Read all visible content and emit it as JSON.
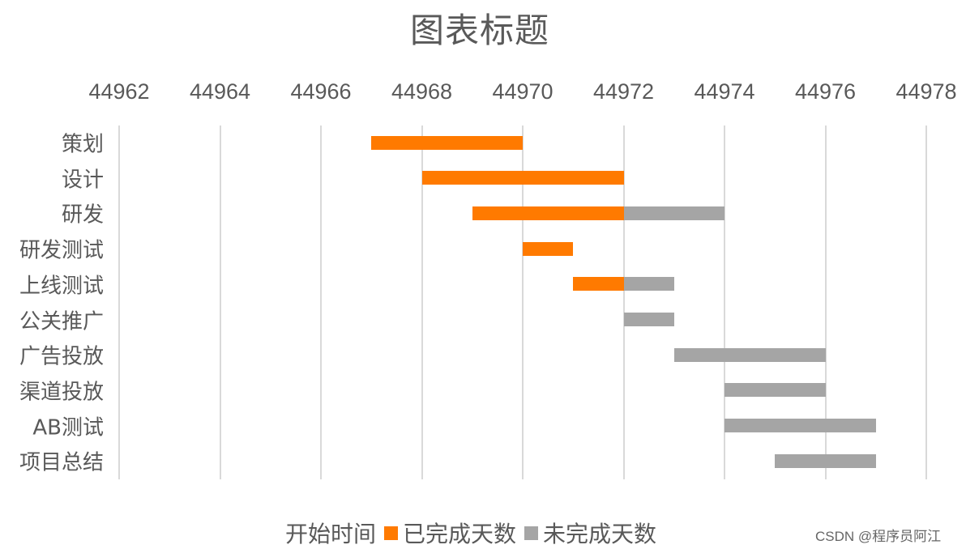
{
  "chart_data": {
    "type": "bar",
    "orientation": "horizontal-stacked-gantt",
    "title": "图表标题",
    "xlabel": "",
    "ylabel": "",
    "xlim": [
      44962,
      44978
    ],
    "x_ticks": [
      "44962",
      "44964",
      "44966",
      "44968",
      "44970",
      "44972",
      "44974",
      "44976",
      "44978"
    ],
    "x_axis_position": "top",
    "grid": true,
    "categories": [
      "策划",
      "设计",
      "研发",
      "研发测试",
      "上线测试",
      "公关推广",
      "广告投放",
      "渠道投放",
      "AB测试",
      "项目总结"
    ],
    "series": [
      {
        "name": "开始时间",
        "color": "none",
        "values": [
          44967,
          44968,
          44969,
          44970,
          44971,
          44972,
          44973,
          44974,
          44974,
          44975
        ]
      },
      {
        "name": "已完成天数",
        "color": "#ff7a00",
        "values": [
          3,
          4,
          3,
          1,
          1,
          0,
          0,
          0,
          0,
          0
        ]
      },
      {
        "name": "未完成天数",
        "color": "#a5a5a5",
        "values": [
          0,
          0,
          2,
          0,
          1,
          1,
          3,
          2,
          3,
          2
        ]
      }
    ],
    "legend": {
      "position": "bottom",
      "entries": [
        "开始时间",
        "已完成天数",
        "未完成天数"
      ]
    }
  },
  "legend_labels": {
    "start": "开始时间",
    "done": "已完成天数",
    "todo": "未完成天数"
  },
  "colors": {
    "done": "#ff7a00",
    "todo": "#a5a5a5",
    "grid": "#d9d9d9",
    "text": "#595959"
  },
  "watermark": "CSDN @程序员阿江"
}
